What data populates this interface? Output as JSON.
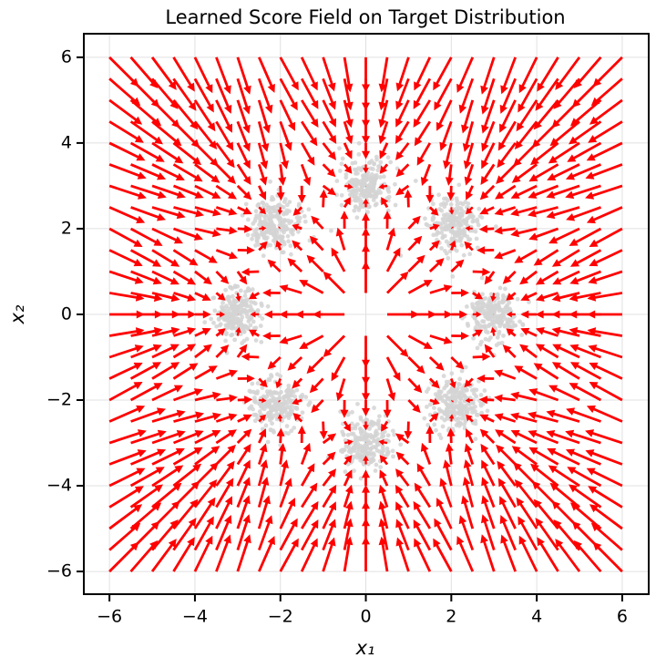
{
  "chart_data": {
    "type": "quiver",
    "title": "Learned Score Field on Target Distribution",
    "x_label": "x₁",
    "y_label": "x₂",
    "x": [
      -6,
      -5.5,
      -5,
      -4.5,
      -4,
      -3.5,
      -3,
      -2.5,
      -2,
      -1.5,
      -1,
      -0.5,
      0,
      0.5,
      1,
      1.5,
      2,
      2.5,
      3,
      3.5,
      4,
      4.5,
      5,
      5.5,
      6
    ],
    "y": [
      -6,
      -5.5,
      -5,
      -4.5,
      -4,
      -3.5,
      -3,
      -2.5,
      -2,
      -1.5,
      -1,
      -0.5,
      0,
      0.5,
      1,
      1.5,
      2,
      2.5,
      3,
      3.5,
      4,
      4.5,
      5,
      5.5,
      6
    ],
    "color": "#ff0000",
    "samples": {
      "color": "#d3d3d3",
      "cluster_std": 0.3,
      "centers_x": [
        0,
        2.1,
        3,
        2.1,
        0,
        -2.1,
        -3,
        -2.1
      ],
      "centers_y": [
        3,
        2.1,
        0,
        -2.1,
        -3,
        -2.1,
        0,
        2.1
      ]
    },
    "xlim": [
      -6.6,
      6.62
    ],
    "ylim": [
      -6.53,
      6.55
    ],
    "xticks": [
      {
        "value": -6,
        "label": "−6"
      },
      {
        "value": -4,
        "label": "−4"
      },
      {
        "value": -2,
        "label": "−2"
      },
      0,
      2,
      4,
      6
    ],
    "yticks": [
      {
        "value": -6,
        "label": "−6"
      },
      {
        "value": -4,
        "label": "−4"
      },
      {
        "value": -2,
        "label": "−2"
      },
      0,
      2,
      4,
      6
    ],
    "grid": true
  }
}
